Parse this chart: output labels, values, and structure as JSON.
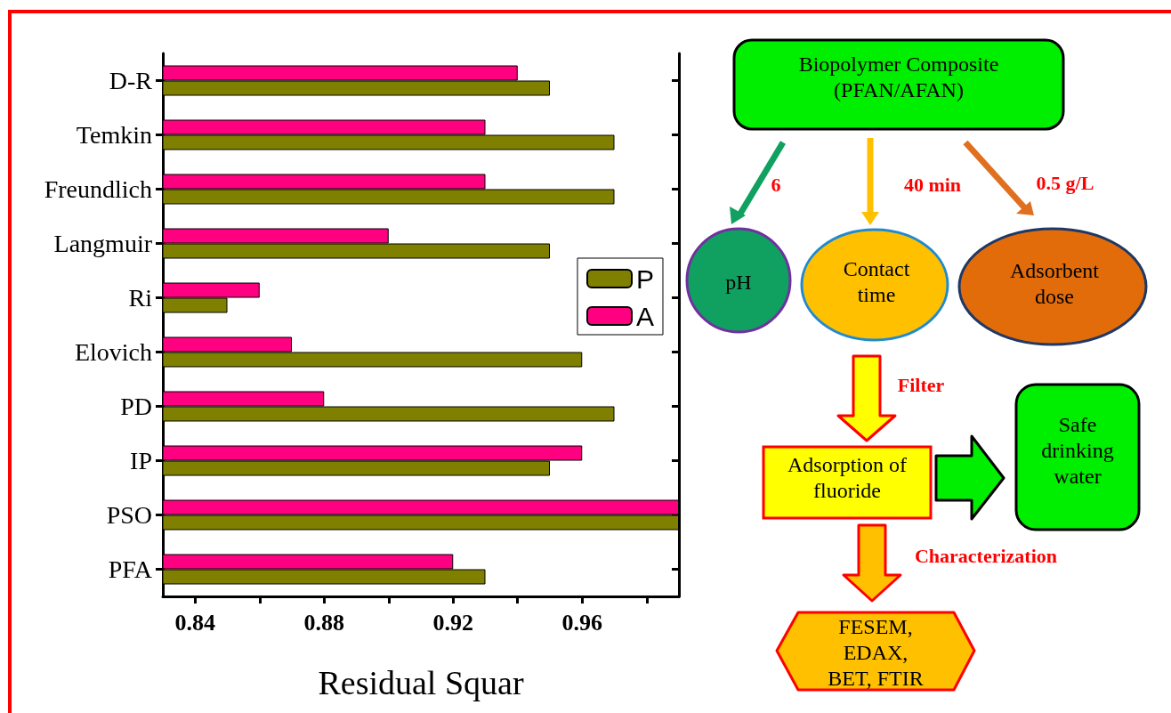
{
  "chart_data": [
    {
      "type": "bar",
      "orientation": "horizontal",
      "xlabel": "Residual Squar",
      "categories": [
        "D-R",
        "Temkin",
        "Freundlich",
        "Langmuir",
        "Ri",
        "Elovich",
        "PD",
        "IP",
        "PSO",
        "PFA"
      ],
      "series": [
        {
          "name": "P",
          "color": "#808000",
          "values": [
            0.95,
            0.97,
            0.97,
            0.95,
            0.85,
            0.96,
            0.97,
            0.95,
            0.99,
            0.93
          ]
        },
        {
          "name": "A",
          "color": "#ff0080",
          "values": [
            0.94,
            0.93,
            0.93,
            0.9,
            0.86,
            0.87,
            0.88,
            0.96,
            0.99,
            0.92
          ]
        }
      ],
      "xlim": [
        0.83,
        0.99
      ],
      "xticks": [
        0.84,
        {
          "value": 0.86,
          "label": null
        },
        0.88,
        {
          "value": 0.9,
          "label": null
        },
        0.92,
        {
          "value": 0.94,
          "label": null
        },
        0.96,
        {
          "value": 0.98,
          "label": null
        }
      ],
      "grid": false,
      "legend": "right"
    },
    {
      "type": "other",
      "annotations": [
        "Biopolymer Composite\n(PFAN/AFAN)",
        "6",
        "40 min",
        "0.5 g/L",
        "pH",
        "Contact\ntime",
        "Adsorbent\ndose",
        "Filter",
        "Adsorption of\nfluoride",
        "Safe\ndrinking\nwater",
        "Characterization",
        "FESEM,\nEDAX,\nBET, FTIR"
      ]
    }
  ]
}
